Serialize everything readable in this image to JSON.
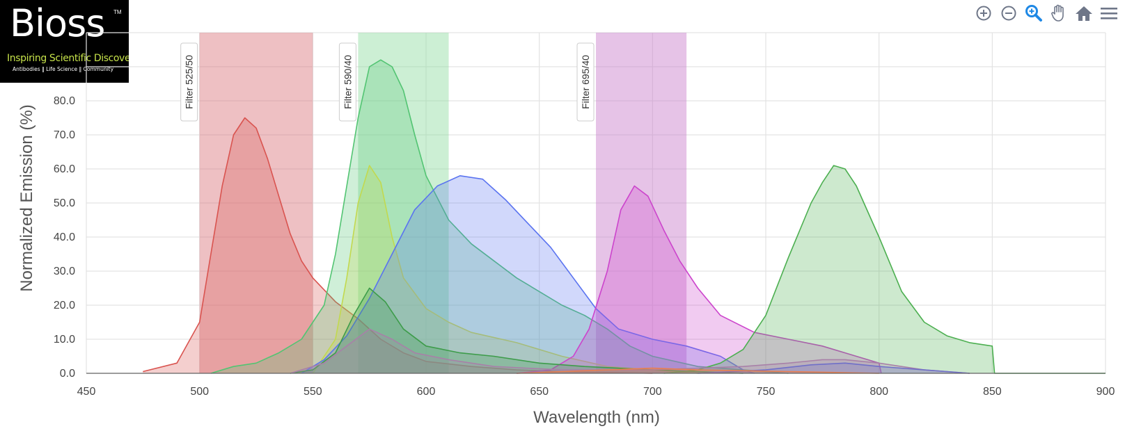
{
  "logo": {
    "brand": "Bioss",
    "trademark": "TM",
    "tagline": "Inspiring Scientific Discovery",
    "subline": "Antibodies ‖ Life Science ‖ Community"
  },
  "toolbar": [
    {
      "name": "zoom-in-icon"
    },
    {
      "name": "zoom-out-icon"
    },
    {
      "name": "magnifier-icon"
    },
    {
      "name": "pan-hand-icon"
    },
    {
      "name": "home-icon"
    },
    {
      "name": "menu-icon"
    }
  ],
  "chart_data": {
    "type": "area",
    "title": "",
    "xlabel": "Wavelength (nm)",
    "ylabel": "Normalized Emission (%)",
    "xlim": [
      450,
      900
    ],
    "ylim": [
      0,
      100
    ],
    "xticks": [
      450,
      500,
      550,
      600,
      650,
      700,
      750,
      800,
      850,
      900
    ],
    "yticks": [
      "0.0",
      "10.0",
      "20.0",
      "30.0",
      "40.0",
      "50.0",
      "60.0",
      "70.0",
      "80.0"
    ],
    "grid": true,
    "filters": [
      {
        "label": "Filter 525/50",
        "range": [
          500,
          550
        ],
        "color": "#d9737b"
      },
      {
        "label": "Filter 590/40",
        "range": [
          570,
          610
        ],
        "color": "#8fdb9f"
      },
      {
        "label": "Filter 695/40",
        "range": [
          675,
          715
        ],
        "color": "#c77bc9"
      }
    ],
    "series": [
      {
        "color": "#d9534f",
        "points": [
          [
            475,
            0.5
          ],
          [
            490,
            3
          ],
          [
            500,
            15
          ],
          [
            505,
            35
          ],
          [
            510,
            55
          ],
          [
            515,
            70
          ],
          [
            520,
            75
          ],
          [
            525,
            72
          ],
          [
            530,
            63
          ],
          [
            535,
            52
          ],
          [
            540,
            41
          ],
          [
            545,
            33
          ],
          [
            550,
            28
          ],
          [
            560,
            21
          ],
          [
            570,
            16
          ],
          [
            580,
            10
          ],
          [
            590,
            6
          ],
          [
            600,
            3.5
          ],
          [
            620,
            2
          ],
          [
            640,
            1
          ],
          [
            660,
            0.5
          ],
          [
            700,
            0
          ]
        ]
      },
      {
        "color": "#52c472",
        "points": [
          [
            505,
            0
          ],
          [
            515,
            2
          ],
          [
            525,
            3
          ],
          [
            535,
            6
          ],
          [
            545,
            10
          ],
          [
            555,
            20
          ],
          [
            560,
            35
          ],
          [
            565,
            55
          ],
          [
            570,
            75
          ],
          [
            575,
            90
          ],
          [
            580,
            92
          ],
          [
            585,
            90
          ],
          [
            590,
            83
          ],
          [
            595,
            70
          ],
          [
            600,
            58
          ],
          [
            610,
            45
          ],
          [
            620,
            38
          ],
          [
            630,
            33
          ],
          [
            640,
            28
          ],
          [
            650,
            24
          ],
          [
            660,
            20
          ],
          [
            670,
            17
          ],
          [
            680,
            13
          ],
          [
            690,
            8
          ],
          [
            700,
            5
          ],
          [
            720,
            2
          ],
          [
            740,
            1
          ],
          [
            760,
            0
          ]
        ]
      },
      {
        "color": "#c2d94e",
        "points": [
          [
            550,
            0
          ],
          [
            560,
            10
          ],
          [
            565,
            28
          ],
          [
            570,
            50
          ],
          [
            575,
            61
          ],
          [
            580,
            56
          ],
          [
            585,
            40
          ],
          [
            590,
            28
          ],
          [
            600,
            19
          ],
          [
            610,
            15
          ],
          [
            620,
            12
          ],
          [
            640,
            9
          ],
          [
            660,
            5
          ],
          [
            680,
            2
          ],
          [
            700,
            1
          ],
          [
            720,
            0
          ]
        ]
      },
      {
        "color": "#5a73f0",
        "points": [
          [
            545,
            0
          ],
          [
            555,
            4
          ],
          [
            565,
            11
          ],
          [
            575,
            22
          ],
          [
            585,
            35
          ],
          [
            595,
            48
          ],
          [
            605,
            55
          ],
          [
            615,
            58
          ],
          [
            625,
            57
          ],
          [
            635,
            51
          ],
          [
            645,
            44
          ],
          [
            655,
            37
          ],
          [
            665,
            28
          ],
          [
            675,
            19
          ],
          [
            685,
            13
          ],
          [
            700,
            10
          ],
          [
            715,
            8
          ],
          [
            730,
            5
          ],
          [
            740,
            1
          ],
          [
            745,
            0
          ]
        ]
      },
      {
        "color": "#cc44cc",
        "points": [
          [
            640,
            0
          ],
          [
            655,
            1
          ],
          [
            665,
            5
          ],
          [
            672,
            13
          ],
          [
            680,
            30
          ],
          [
            686,
            48
          ],
          [
            692,
            55
          ],
          [
            698,
            52
          ],
          [
            705,
            42
          ],
          [
            712,
            33
          ],
          [
            720,
            25
          ],
          [
            730,
            17
          ],
          [
            745,
            12
          ],
          [
            760,
            10
          ],
          [
            775,
            8
          ],
          [
            790,
            5
          ],
          [
            800,
            3
          ],
          [
            801,
            0
          ]
        ]
      },
      {
        "color": "#4caf50",
        "points": [
          [
            705,
            0
          ],
          [
            720,
            1
          ],
          [
            730,
            3
          ],
          [
            740,
            7
          ],
          [
            750,
            17
          ],
          [
            760,
            34
          ],
          [
            770,
            50
          ],
          [
            775,
            56
          ],
          [
            780,
            61
          ],
          [
            785,
            60
          ],
          [
            790,
            55
          ],
          [
            800,
            40
          ],
          [
            810,
            24
          ],
          [
            820,
            15
          ],
          [
            830,
            11
          ],
          [
            840,
            9
          ],
          [
            850,
            8
          ],
          [
            851,
            0
          ],
          [
            900,
            0
          ]
        ]
      },
      {
        "color": "#3d9c4a",
        "points": [
          [
            540,
            0
          ],
          [
            550,
            1
          ],
          [
            560,
            6
          ],
          [
            568,
            17
          ],
          [
            575,
            25
          ],
          [
            582,
            21
          ],
          [
            590,
            13
          ],
          [
            600,
            8
          ],
          [
            615,
            6
          ],
          [
            630,
            5
          ],
          [
            650,
            3
          ],
          [
            670,
            2
          ],
          [
            700,
            1
          ],
          [
            740,
            0
          ]
        ]
      },
      {
        "color": "#a880a8",
        "points": [
          [
            540,
            0
          ],
          [
            555,
            3
          ],
          [
            565,
            8
          ],
          [
            575,
            13
          ],
          [
            585,
            10
          ],
          [
            595,
            6
          ],
          [
            610,
            4
          ],
          [
            630,
            2
          ],
          [
            660,
            1
          ],
          [
            700,
            1
          ],
          [
            740,
            2
          ],
          [
            760,
            3
          ],
          [
            775,
            4
          ],
          [
            785,
            4
          ],
          [
            800,
            3
          ],
          [
            820,
            1
          ],
          [
            840,
            0
          ]
        ]
      },
      {
        "color": "#6f6fc8",
        "points": [
          [
            720,
            0
          ],
          [
            750,
            1
          ],
          [
            770,
            2.5
          ],
          [
            785,
            3
          ],
          [
            800,
            2
          ],
          [
            820,
            1
          ],
          [
            840,
            0
          ]
        ]
      },
      {
        "color": "#e87e4f",
        "points": [
          [
            640,
            0
          ],
          [
            680,
            1
          ],
          [
            700,
            1.5
          ],
          [
            720,
            1
          ],
          [
            760,
            0.5
          ],
          [
            800,
            0
          ]
        ]
      }
    ]
  }
}
